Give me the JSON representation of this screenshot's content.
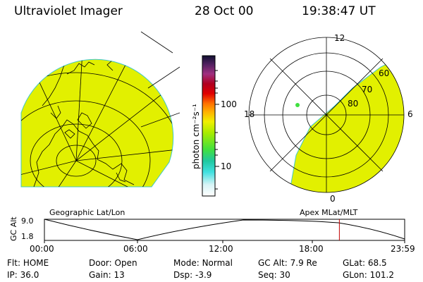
{
  "header": {
    "title": "Ultraviolet Imager",
    "date": "28 Oct 00",
    "time": "19:38:47 UT"
  },
  "colorbar": {
    "unit_label": "photon cm⁻²s⁻¹",
    "ticks": [
      "100",
      "10"
    ]
  },
  "left_map": {
    "caption": "Geographic Lat/Lon",
    "fill_color": "#e2f000"
  },
  "right_map": {
    "caption": "Apex MLat/MLT",
    "mlt_labels": [
      "12",
      "18",
      "6",
      "0"
    ],
    "lat_labels": [
      "60",
      "70",
      "80"
    ],
    "fill_color": "#e2f000"
  },
  "timeline": {
    "ylabel": "GC Alt",
    "y_ticks": [
      "9.0",
      "1.8"
    ],
    "x_ticks": [
      "00:00",
      "06:00",
      "12:00",
      "18:00",
      "23:59"
    ],
    "current_time_hours": 19.65
  },
  "info": {
    "row1": [
      {
        "label": "Flt:",
        "value": "HOME"
      },
      {
        "label": "Door:",
        "value": "Open"
      },
      {
        "label": "Mode:",
        "value": "Normal"
      },
      {
        "label": "GC Alt:",
        "value": "7.9 Re"
      },
      {
        "label": "GLat:",
        "value": "68.5"
      }
    ],
    "row2": [
      {
        "label": "IP:",
        "value": "36.0"
      },
      {
        "label": "Gain:",
        "value": "13"
      },
      {
        "label": "Dsp:",
        "value": "-3.9"
      },
      {
        "label": "Seq:",
        "value": "30"
      },
      {
        "label": "GLon:",
        "value": "101.2"
      }
    ]
  }
}
